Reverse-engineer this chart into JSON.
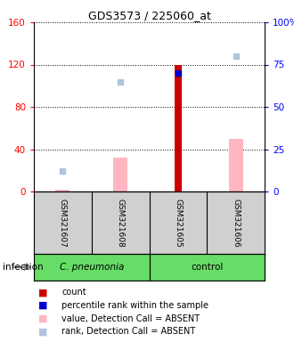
{
  "title": "GDS3573 / 225060_at",
  "samples": [
    "GSM321607",
    "GSM321608",
    "GSM321605",
    "GSM321606"
  ],
  "ylim_left": [
    0,
    160
  ],
  "ylim_right": [
    0,
    100
  ],
  "yticks_left": [
    0,
    40,
    80,
    120,
    160
  ],
  "ytick_labels_left": [
    "0",
    "40",
    "80",
    "120",
    "160"
  ],
  "ytick_labels_right": [
    "0",
    "25",
    "50",
    "75",
    "100%"
  ],
  "count_values": [
    null,
    null,
    120,
    null
  ],
  "percentile_rank_vals": [
    null,
    null,
    70,
    null
  ],
  "value_absent": [
    2,
    32,
    null,
    50
  ],
  "rank_absent": [
    12,
    65,
    null,
    80
  ],
  "count_color": "#CC0000",
  "percentile_color": "#0000CC",
  "value_absent_color": "#FFB6C1",
  "rank_absent_color": "#B0C4DE",
  "infection_label": "infection",
  "group_label_1": "C. pneumonia",
  "group_label_2": "control",
  "group1_samples": [
    0,
    1
  ],
  "group2_samples": [
    2,
    3
  ],
  "green_color": "#66DD66",
  "grey_color": "#D0D0D0",
  "legend_items": [
    {
      "label": "count",
      "color": "#CC0000"
    },
    {
      "label": "percentile rank within the sample",
      "color": "#0000CC"
    },
    {
      "label": "value, Detection Call = ABSENT",
      "color": "#FFB6C1"
    },
    {
      "label": "rank, Detection Call = ABSENT",
      "color": "#B0C4DE"
    }
  ]
}
